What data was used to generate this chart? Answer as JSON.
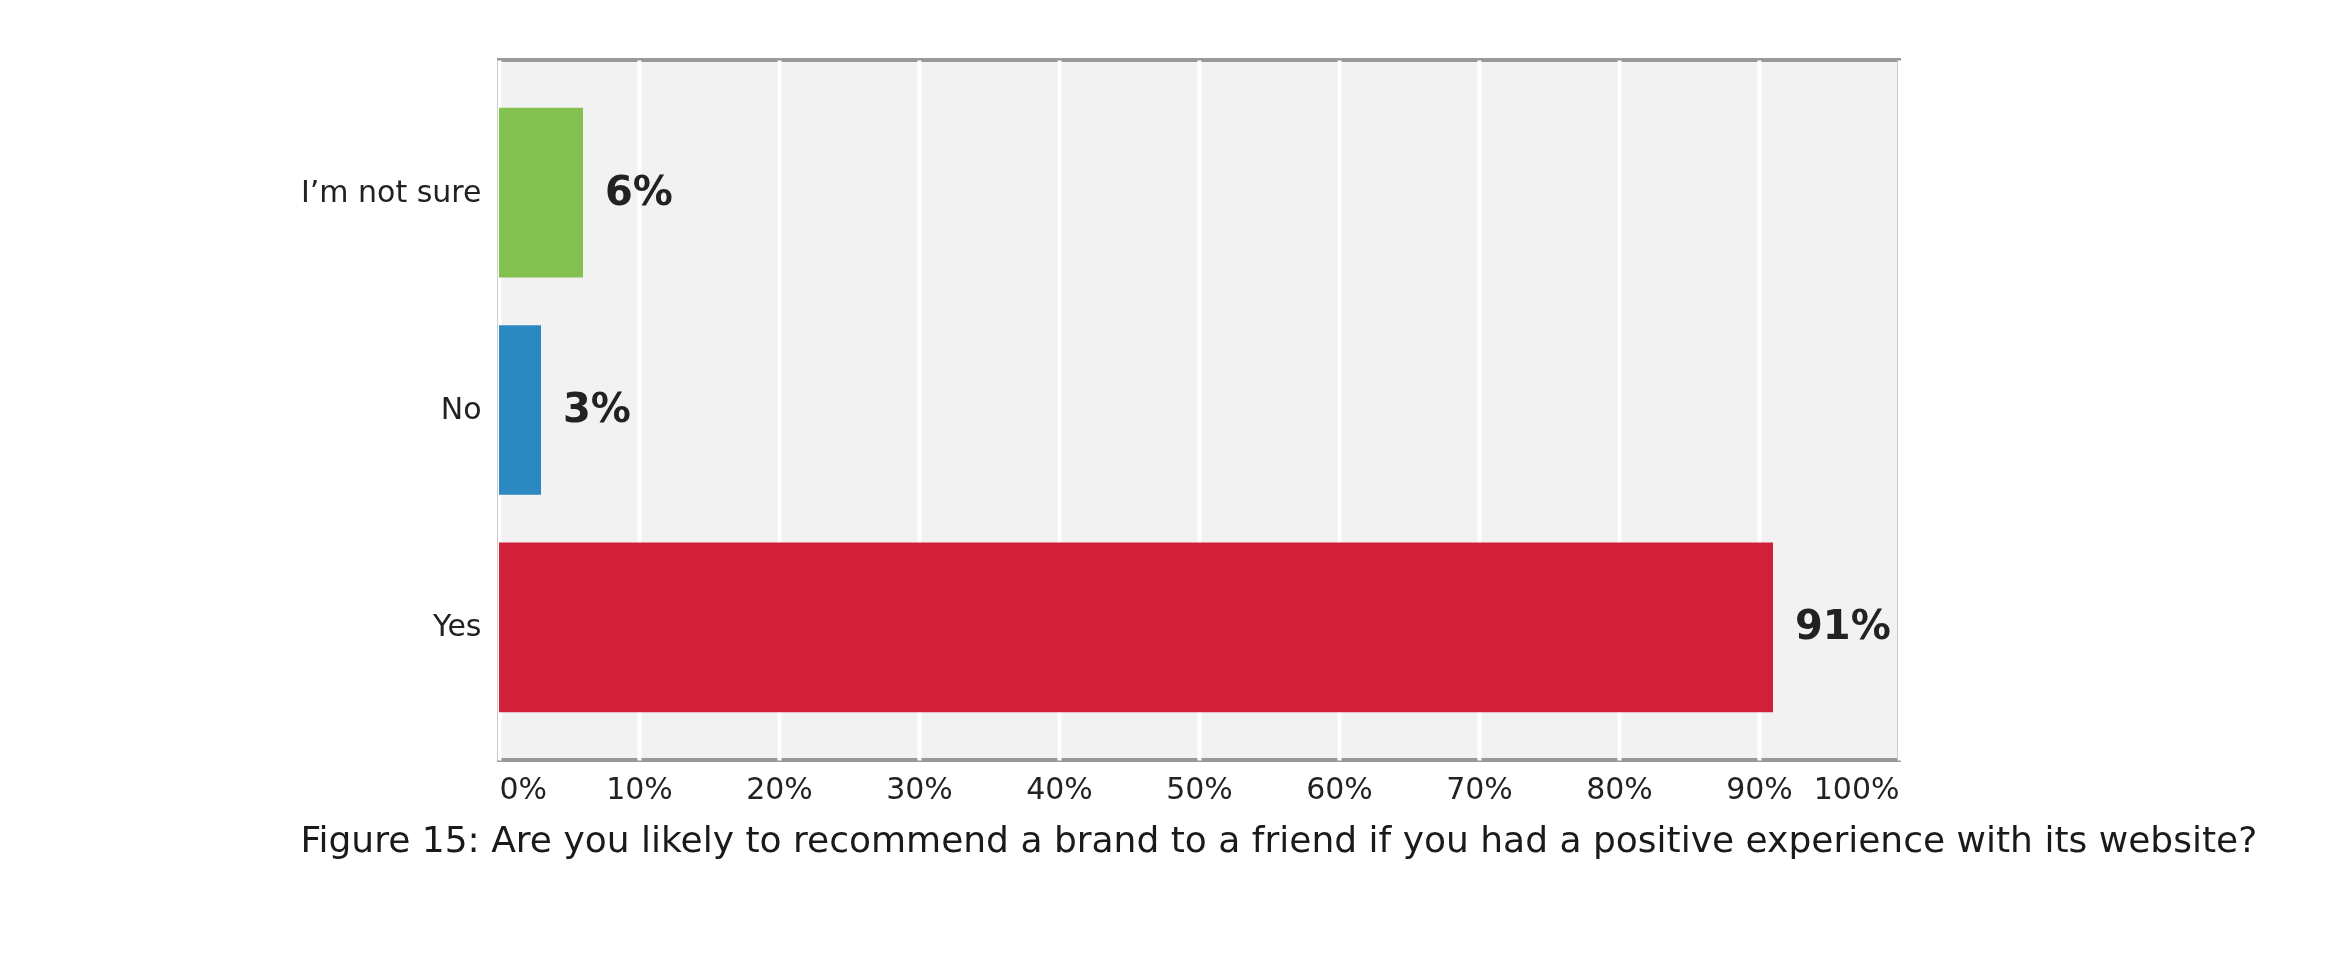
{
  "chart_data": {
    "type": "bar",
    "orientation": "horizontal",
    "title": "Figure 15: Are you likely to recommend a brand to a friend if you had a positive experience with its website?",
    "categories": [
      "I’m not sure",
      "No",
      "Yes"
    ],
    "values": [
      6,
      3,
      91
    ],
    "colors": [
      "#84c150",
      "#2b88c0",
      "#d21f3a"
    ],
    "value_labels": [
      "6%",
      "3%",
      "91%"
    ],
    "xlim": [
      0,
      100
    ],
    "xticks": [
      {
        "value": 0,
        "label": "0%"
      },
      {
        "value": 10,
        "label": "10%"
      },
      {
        "value": 20,
        "label": "20%"
      },
      {
        "value": 30,
        "label": "30%"
      },
      {
        "value": 40,
        "label": "40%"
      },
      {
        "value": 50,
        "label": "50%"
      },
      {
        "value": 60,
        "label": "60%"
      },
      {
        "value": 70,
        "label": "70%"
      },
      {
        "value": 80,
        "label": "80%"
      },
      {
        "value": 90,
        "label": "90%"
      },
      {
        "value": 100,
        "label": "100%"
      }
    ],
    "grid": "x"
  }
}
